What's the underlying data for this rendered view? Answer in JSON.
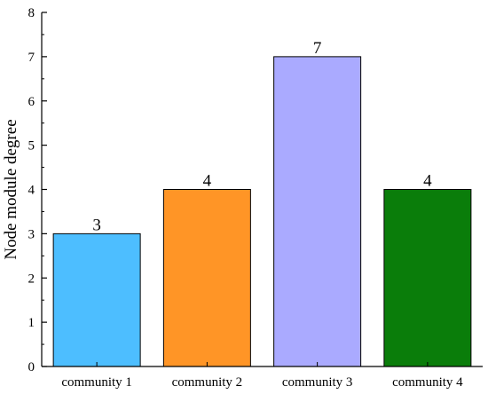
{
  "chart_data": {
    "type": "bar",
    "categories": [
      "community 1",
      "community 2",
      "community 3",
      "community 4"
    ],
    "values": [
      3,
      4,
      7,
      4
    ],
    "data_labels": [
      "3",
      "4",
      "7",
      "4"
    ],
    "bar_colors": [
      "#4dbeff",
      "#ff9526",
      "#aaaaff",
      "#0a7d0a"
    ],
    "title": "",
    "xlabel": "",
    "ylabel": "Node module degree",
    "ylim": [
      0,
      8
    ],
    "yticks": [
      0,
      1,
      2,
      3,
      4,
      5,
      6,
      7,
      8
    ],
    "ytick_labels": [
      "0",
      "1",
      "2",
      "3",
      "4",
      "5",
      "6",
      "7",
      "8"
    ],
    "grid": false,
    "legend": false
  }
}
